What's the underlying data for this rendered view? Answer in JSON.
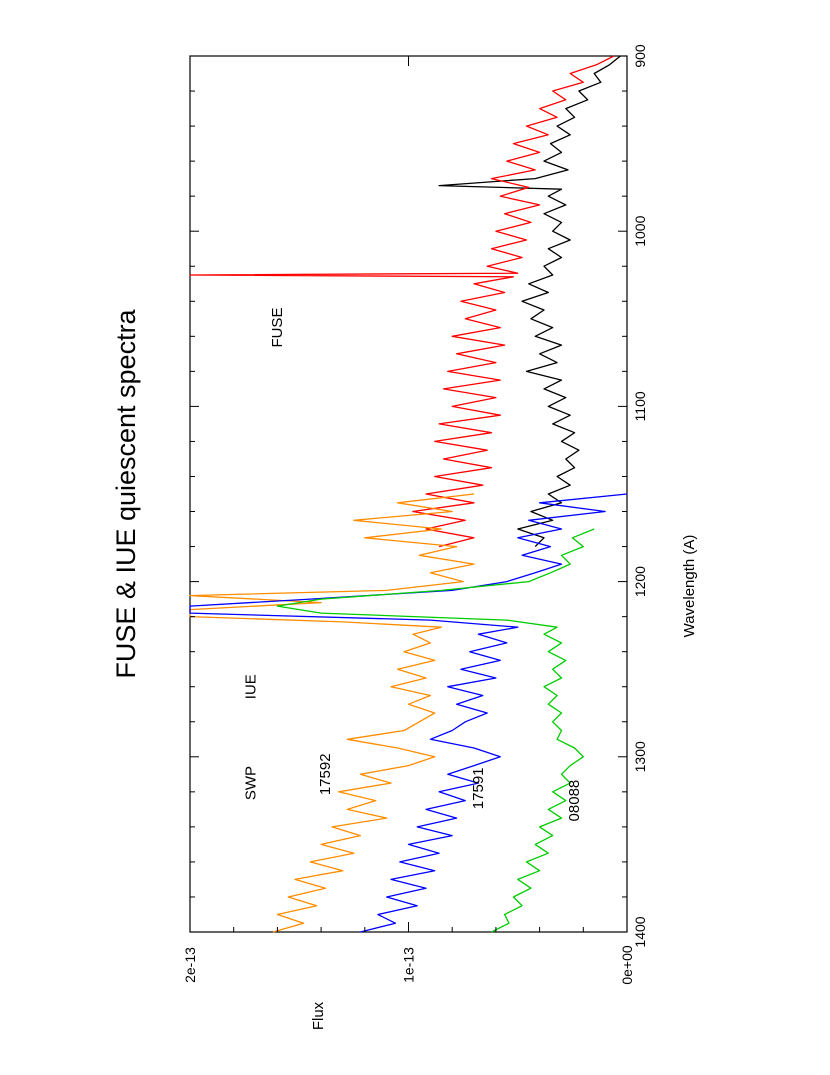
{
  "chart_data": {
    "type": "line",
    "title": "FUSE & IUE quiescent spectra",
    "xlabel": "Wavelength (A)",
    "ylabel": "Flux",
    "xlim": [
      900,
      1400
    ],
    "ylim": [
      0,
      2e-13
    ],
    "x_ticks": [
      {
        "value": 900,
        "label": "900"
      },
      {
        "value": 1000,
        "label": "1000"
      },
      {
        "value": 1100,
        "label": "1100"
      },
      {
        "value": 1200,
        "label": "1200"
      },
      {
        "value": 1300,
        "label": "1300"
      },
      {
        "value": 1400,
        "label": "1400"
      }
    ],
    "y_ticks": [
      {
        "value": 0,
        "label": "0e+00"
      },
      {
        "value": 1e-13,
        "label": "1e-13"
      },
      {
        "value": 2e-13,
        "label": "2e-13"
      }
    ],
    "orientation": "rotated 90 degrees counter-clockwise (wavelength runs down the page, flux increases to the left)",
    "grid": false,
    "annotations": [
      {
        "text": "FUSE",
        "x": 1055,
        "y": 1.58e-13
      },
      {
        "text": "IUE",
        "x": 1260,
        "y": 1.7e-13
      },
      {
        "text": "SWP",
        "x": 1315,
        "y": 1.7e-13
      },
      {
        "text": "17592",
        "x": 1310,
        "y": 1.36e-13
      },
      {
        "text": "17591",
        "x": 1318,
        "y": 6.6e-14
      },
      {
        "text": "08088",
        "x": 1325,
        "y": 2.2e-14
      }
    ],
    "series": [
      {
        "color": "#000000",
        "description": "FUSE spectrum (black)",
        "points": [
          [
            900,
            3e-15
          ],
          [
            905,
            8e-15
          ],
          [
            910,
            1.5e-14
          ],
          [
            915,
            1.2e-14
          ],
          [
            920,
            2.2e-14
          ],
          [
            925,
            1.8e-14
          ],
          [
            930,
            2.8e-14
          ],
          [
            935,
            2.4e-14
          ],
          [
            940,
            3.2e-14
          ],
          [
            945,
            2.6e-14
          ],
          [
            950,
            3.5e-14
          ],
          [
            955,
            3e-14
          ],
          [
            960,
            3.8e-14
          ],
          [
            965,
            2.7e-14
          ],
          [
            970,
            4.2e-14
          ],
          [
            974,
            8.6e-14
          ],
          [
            976,
            3e-14
          ],
          [
            980,
            3.6e-14
          ],
          [
            985,
            2.8e-14
          ],
          [
            990,
            3.8e-14
          ],
          [
            995,
            3e-14
          ],
          [
            1000,
            3.4e-14
          ],
          [
            1005,
            2.6e-14
          ],
          [
            1010,
            3.6e-14
          ],
          [
            1015,
            3e-14
          ],
          [
            1020,
            3.8e-14
          ],
          [
            1025,
            3.4e-14
          ],
          [
            1030,
            4.5e-14
          ],
          [
            1035,
            3.6e-14
          ],
          [
            1040,
            4.8e-14
          ],
          [
            1045,
            3.8e-14
          ],
          [
            1050,
            4.4e-14
          ],
          [
            1055,
            3.4e-14
          ],
          [
            1060,
            4.2e-14
          ],
          [
            1065,
            3e-14
          ],
          [
            1070,
            4e-14
          ],
          [
            1075,
            3.2e-14
          ],
          [
            1080,
            4.6e-14
          ],
          [
            1085,
            3e-14
          ],
          [
            1090,
            3.8e-14
          ],
          [
            1095,
            2.8e-14
          ],
          [
            1100,
            3.6e-14
          ],
          [
            1105,
            2.6e-14
          ],
          [
            1110,
            3.4e-14
          ],
          [
            1115,
            2.4e-14
          ],
          [
            1120,
            3e-14
          ],
          [
            1125,
            2.2e-14
          ],
          [
            1130,
            2.8e-14
          ],
          [
            1135,
            2.4e-14
          ],
          [
            1140,
            3.2e-14
          ],
          [
            1145,
            2.6e-14
          ],
          [
            1150,
            3.6e-14
          ],
          [
            1155,
            3e-14
          ],
          [
            1160,
            4.4e-14
          ],
          [
            1165,
            3.4e-14
          ],
          [
            1170,
            5e-14
          ],
          [
            1175,
            3.8e-14
          ],
          [
            1180,
            4.2e-14
          ]
        ]
      },
      {
        "color": "#ff0000",
        "description": "FUSE spectrum (red)",
        "points": [
          [
            900,
            6e-15
          ],
          [
            905,
            1.4e-14
          ],
          [
            910,
            2.6e-14
          ],
          [
            915,
            2e-14
          ],
          [
            920,
            3.4e-14
          ],
          [
            925,
            2.8e-14
          ],
          [
            930,
            4e-14
          ],
          [
            935,
            3.2e-14
          ],
          [
            940,
            4.6e-14
          ],
          [
            945,
            3.6e-14
          ],
          [
            950,
            5.2e-14
          ],
          [
            955,
            4e-14
          ],
          [
            960,
            5.5e-14
          ],
          [
            965,
            4.2e-14
          ],
          [
            970,
            6.2e-14
          ],
          [
            975,
            4.5e-14
          ],
          [
            980,
            5.8e-14
          ],
          [
            985,
            4e-14
          ],
          [
            990,
            5.6e-14
          ],
          [
            995,
            4.4e-14
          ],
          [
            1000,
            6e-14
          ],
          [
            1005,
            4.6e-14
          ],
          [
            1010,
            6.2e-14
          ],
          [
            1015,
            4.8e-14
          ],
          [
            1020,
            6.4e-14
          ],
          [
            1024,
            5e-14
          ],
          [
            1025,
            2e-13
          ],
          [
            1026,
            5.2e-14
          ],
          [
            1030,
            7e-14
          ],
          [
            1035,
            5.6e-14
          ],
          [
            1040,
            7.6e-14
          ],
          [
            1045,
            6e-14
          ],
          [
            1050,
            7.4e-14
          ],
          [
            1055,
            5.8e-14
          ],
          [
            1060,
            8e-14
          ],
          [
            1065,
            5.6e-14
          ],
          [
            1070,
            7.8e-14
          ],
          [
            1075,
            6e-14
          ],
          [
            1080,
            8.2e-14
          ],
          [
            1085,
            5.8e-14
          ],
          [
            1090,
            8.4e-14
          ],
          [
            1095,
            6e-14
          ],
          [
            1100,
            8e-14
          ],
          [
            1105,
            5.8e-14
          ],
          [
            1110,
            8.6e-14
          ],
          [
            1115,
            6.2e-14
          ],
          [
            1120,
            8.8e-14
          ],
          [
            1125,
            6.4e-14
          ],
          [
            1130,
            8.4e-14
          ],
          [
            1135,
            6.2e-14
          ],
          [
            1140,
            8.8e-14
          ],
          [
            1145,
            6.6e-14
          ],
          [
            1150,
            9.2e-14
          ],
          [
            1155,
            7e-14
          ],
          [
            1160,
            9.8e-14
          ],
          [
            1165,
            7.4e-14
          ],
          [
            1170,
            9.2e-14
          ],
          [
            1175,
            7e-14
          ],
          [
            1180,
            8.6e-14
          ]
        ]
      },
      {
        "color": "#ff8c00",
        "description": "IUE SWP 17592 (orange)",
        "points": [
          [
            1150,
            7e-14
          ],
          [
            1155,
            1.05e-13
          ],
          [
            1160,
            8e-14
          ],
          [
            1165,
            1.25e-13
          ],
          [
            1170,
            8.5e-14
          ],
          [
            1175,
            1.2e-13
          ],
          [
            1180,
            7.8e-14
          ],
          [
            1185,
            9.5e-14
          ],
          [
            1190,
            7e-14
          ],
          [
            1195,
            9e-14
          ],
          [
            1200,
            7.5e-14
          ],
          [
            1205,
            1.1e-13
          ],
          [
            1208,
            2e-13
          ],
          [
            1212,
            1.4e-13
          ],
          [
            1216,
            2e-13
          ],
          [
            1220,
            2e-13
          ],
          [
            1223,
            1.3e-13
          ],
          [
            1226,
            8.5e-14
          ],
          [
            1230,
            9.8e-14
          ],
          [
            1235,
            9e-14
          ],
          [
            1240,
            1.02e-13
          ],
          [
            1245,
            8.8e-14
          ],
          [
            1250,
            1.05e-13
          ],
          [
            1255,
            9.2e-14
          ],
          [
            1260,
            1.08e-13
          ],
          [
            1265,
            9e-14
          ],
          [
            1270,
            1e-13
          ],
          [
            1275,
            8.8e-14
          ],
          [
            1280,
            9.5e-14
          ],
          [
            1285,
            1.02e-13
          ],
          [
            1290,
            1.28e-13
          ],
          [
            1295,
            1.05e-13
          ],
          [
            1300,
            8.8e-14
          ],
          [
            1305,
            1e-13
          ],
          [
            1310,
            1.22e-13
          ],
          [
            1315,
            1.08e-13
          ],
          [
            1320,
            1.32e-13
          ],
          [
            1325,
            1.15e-13
          ],
          [
            1330,
            1.28e-13
          ],
          [
            1335,
            1.1e-13
          ],
          [
            1340,
            1.35e-13
          ],
          [
            1345,
            1.22e-13
          ],
          [
            1350,
            1.4e-13
          ],
          [
            1355,
            1.25e-13
          ],
          [
            1360,
            1.45e-13
          ],
          [
            1365,
            1.3e-13
          ],
          [
            1370,
            1.52e-13
          ],
          [
            1375,
            1.38e-13
          ],
          [
            1380,
            1.55e-13
          ],
          [
            1385,
            1.42e-13
          ],
          [
            1390,
            1.6e-13
          ],
          [
            1395,
            1.48e-13
          ],
          [
            1400,
            1.62e-13
          ]
        ]
      },
      {
        "color": "#0000ff",
        "description": "IUE SWP 17591 (blue)",
        "points": [
          [
            1150,
            0.0
          ],
          [
            1155,
            4e-14
          ],
          [
            1160,
            1e-14
          ],
          [
            1165,
            4.5e-14
          ],
          [
            1170,
            3e-14
          ],
          [
            1175,
            5e-14
          ],
          [
            1180,
            3.5e-14
          ],
          [
            1185,
            4.8e-14
          ],
          [
            1190,
            3e-14
          ],
          [
            1195,
            4.2e-14
          ],
          [
            1200,
            5.5e-14
          ],
          [
            1205,
            8e-14
          ],
          [
            1210,
            1.45e-13
          ],
          [
            1214,
            2e-13
          ],
          [
            1218,
            2e-13
          ],
          [
            1222,
            9e-14
          ],
          [
            1226,
            5e-14
          ],
          [
            1230,
            6.8e-14
          ],
          [
            1235,
            5.5e-14
          ],
          [
            1240,
            7.2e-14
          ],
          [
            1245,
            5.8e-14
          ],
          [
            1250,
            7.6e-14
          ],
          [
            1255,
            6e-14
          ],
          [
            1260,
            8.2e-14
          ],
          [
            1265,
            6.6e-14
          ],
          [
            1270,
            7.8e-14
          ],
          [
            1275,
            6.4e-14
          ],
          [
            1280,
            7.4e-14
          ],
          [
            1285,
            8e-14
          ],
          [
            1290,
            9e-14
          ],
          [
            1295,
            7e-14
          ],
          [
            1300,
            5.8e-14
          ],
          [
            1305,
            7e-14
          ],
          [
            1310,
            8.2e-14
          ],
          [
            1315,
            6.8e-14
          ],
          [
            1320,
            8.6e-14
          ],
          [
            1325,
            7.4e-14
          ],
          [
            1330,
            9.2e-14
          ],
          [
            1335,
            7.8e-14
          ],
          [
            1340,
            9.6e-14
          ],
          [
            1345,
            8e-14
          ],
          [
            1350,
            1e-13
          ],
          [
            1355,
            8.6e-14
          ],
          [
            1360,
            1.04e-13
          ],
          [
            1365,
            8.8e-14
          ],
          [
            1370,
            1.08e-13
          ],
          [
            1375,
            9.2e-14
          ],
          [
            1380,
            1.1e-13
          ],
          [
            1385,
            9.6e-14
          ],
          [
            1390,
            1.14e-13
          ],
          [
            1395,
            1.06e-13
          ],
          [
            1400,
            1.22e-13
          ]
        ]
      },
      {
        "color": "#00cc00",
        "description": "IUE SWP 08088 (green)",
        "points": [
          [
            1170,
            1.5e-14
          ],
          [
            1175,
            2.5e-14
          ],
          [
            1180,
            2e-14
          ],
          [
            1185,
            3e-14
          ],
          [
            1190,
            2.6e-14
          ],
          [
            1195,
            3.5e-14
          ],
          [
            1200,
            4.5e-14
          ],
          [
            1205,
            8.5e-14
          ],
          [
            1210,
            1.4e-13
          ],
          [
            1214,
            1.6e-13
          ],
          [
            1218,
            1.4e-13
          ],
          [
            1222,
            5.5e-14
          ],
          [
            1226,
            3.2e-14
          ],
          [
            1230,
            3.8e-14
          ],
          [
            1235,
            3e-14
          ],
          [
            1240,
            3.6e-14
          ],
          [
            1245,
            2.8e-14
          ],
          [
            1250,
            3.4e-14
          ],
          [
            1255,
            3e-14
          ],
          [
            1260,
            3.8e-14
          ],
          [
            1265,
            3.2e-14
          ],
          [
            1270,
            3.6e-14
          ],
          [
            1275,
            3e-14
          ],
          [
            1280,
            3.4e-14
          ],
          [
            1285,
            3e-14
          ],
          [
            1290,
            3.2e-14
          ],
          [
            1295,
            2.4e-14
          ],
          [
            1300,
            2e-14
          ],
          [
            1305,
            2.6e-14
          ],
          [
            1310,
            3e-14
          ],
          [
            1315,
            2.6e-14
          ],
          [
            1320,
            3.4e-14
          ],
          [
            1325,
            2.8e-14
          ],
          [
            1330,
            3.6e-14
          ],
          [
            1335,
            3e-14
          ],
          [
            1340,
            4e-14
          ],
          [
            1345,
            3.4e-14
          ],
          [
            1350,
            4.2e-14
          ],
          [
            1355,
            3.6e-14
          ],
          [
            1360,
            4.6e-14
          ],
          [
            1365,
            4e-14
          ],
          [
            1370,
            5e-14
          ],
          [
            1375,
            4.4e-14
          ],
          [
            1380,
            5.2e-14
          ],
          [
            1385,
            4.8e-14
          ],
          [
            1390,
            5.6e-14
          ],
          [
            1395,
            5.4e-14
          ],
          [
            1400,
            6.2e-14
          ]
        ]
      }
    ]
  }
}
